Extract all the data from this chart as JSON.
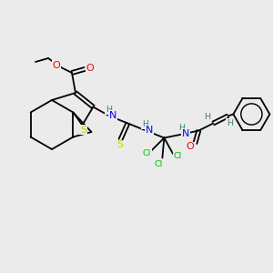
{
  "background_color": "#ebebeb",
  "atoms": {
    "C": "#000000",
    "N": "#0000FF",
    "O": "#FF0000",
    "S": "#cccc00",
    "Cl": "#00bb00",
    "H": "#408080"
  },
  "lw": 1.3,
  "fs": 8.0,
  "fs_small": 6.8
}
